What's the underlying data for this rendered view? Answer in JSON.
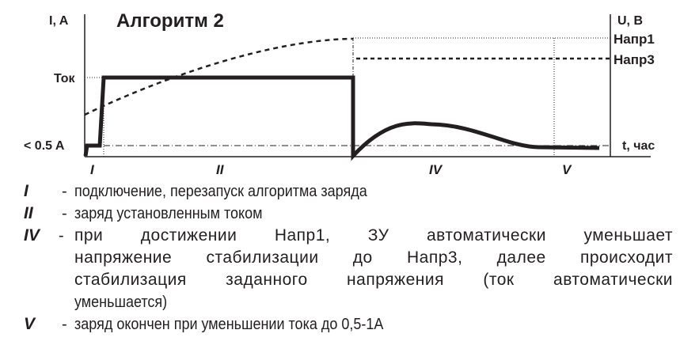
{
  "diagram": {
    "title": "Алгоритм 2",
    "left_axis_label": "I, A",
    "right_axis_label": "U, B",
    "time_axis_label": "t, час",
    "current_level_label": "Ток",
    "low_current_label": "< 0.5 A",
    "voltage1_label": "Напр1",
    "voltage3_label": "Напр3",
    "stages": [
      "I",
      "II",
      "IV",
      "V"
    ]
  },
  "legend": [
    {
      "num": "I",
      "lines": [
        "подключение, перезапуск алгоритма заряда"
      ]
    },
    {
      "num": "II",
      "lines": [
        "заряд установленным током"
      ]
    },
    {
      "num": "IV",
      "lines": [
        "при достижении Напр1, ЗУ автоматически уменьшает",
        "напряжение стабилизации до Напр3, далее происходит",
        "стабилизация заданного напряжения (ток автоматически",
        "уменьшается)"
      ]
    },
    {
      "num": "V",
      "lines": [
        "заряд окончен при уменьшении тока до 0,5-1А"
      ]
    }
  ]
}
